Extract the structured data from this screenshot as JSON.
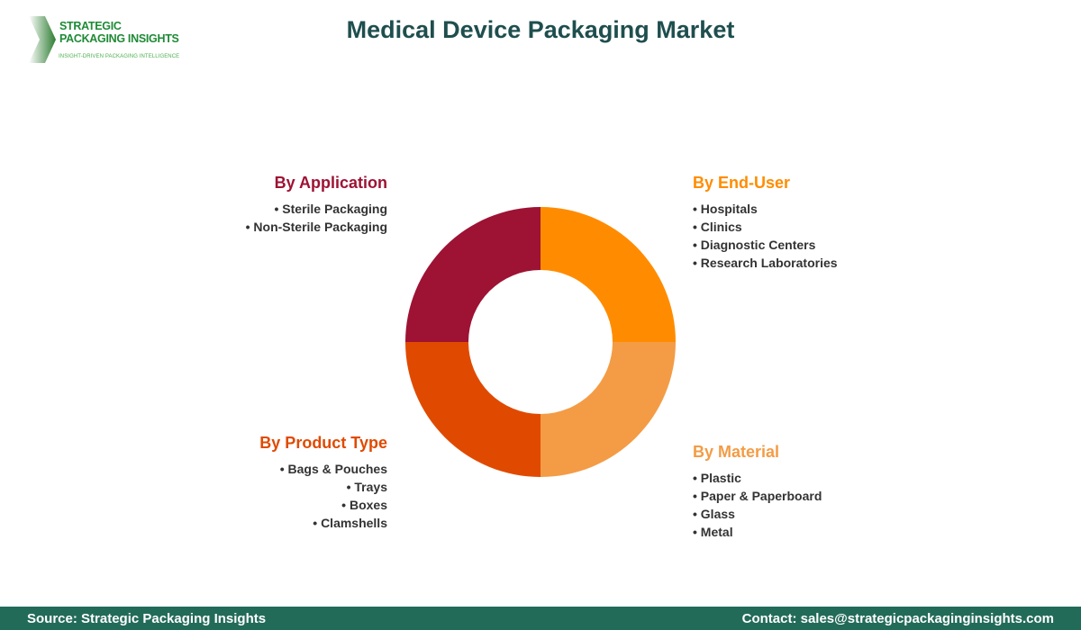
{
  "logo": {
    "line1": "STRATEGIC",
    "line2": "PACKAGING INSIGHTS",
    "tagline": "INSIGHT-DRIVEN PACKAGING INTELLIGENCE"
  },
  "title": "Medical Device Packaging Market",
  "segments": [
    {
      "key": "application",
      "title": "By Application",
      "color": "#9E1233",
      "items": [
        "Sterile Packaging",
        "Non-Sterile Packaging"
      ]
    },
    {
      "key": "end_user",
      "title": "By End-User",
      "color": "#FF8C00",
      "items": [
        "Hospitals",
        "Clinics",
        "Diagnostic Centers",
        "Research Laboratories"
      ]
    },
    {
      "key": "product_type",
      "title": "By Product Type",
      "color": "#E04A00",
      "items": [
        "Bags & Pouches",
        "Trays",
        "Boxes",
        "Clamshells"
      ]
    },
    {
      "key": "material",
      "title": "By Material",
      "color": "#F39C45",
      "items": [
        "Plastic",
        "Paper & Paperboard",
        "Glass",
        "Metal"
      ]
    }
  ],
  "footer": {
    "source": "Source: Strategic Packaging Insights",
    "contact": "Contact: sales@strategicpackaginginsights.com"
  }
}
